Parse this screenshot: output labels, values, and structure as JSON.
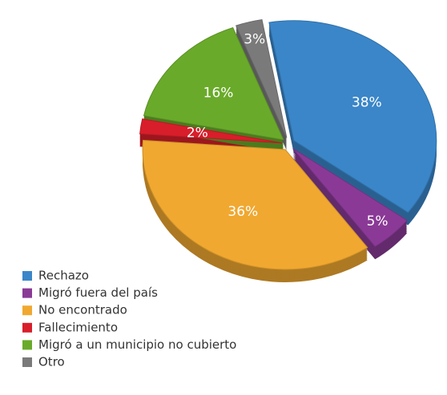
{
  "chart_data": {
    "type": "pie",
    "categories": [
      "Rechazo",
      "Migró fuera del país",
      "No encontrado",
      "Fallecimiento",
      "Migró a un municipio no cubierto",
      "Otro"
    ],
    "values": [
      38,
      5,
      36,
      2,
      16,
      3
    ],
    "value_labels": [
      "38%",
      "5%",
      "36%",
      "2%",
      "16%",
      "3%"
    ],
    "colors": [
      "#3a86c8",
      "#8a3a96",
      "#f0a830",
      "#d81e2a",
      "#6aaa2a",
      "#7a7a7a"
    ],
    "legend": "bottom-left"
  }
}
